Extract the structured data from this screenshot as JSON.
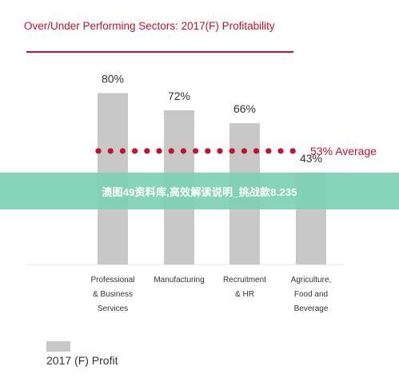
{
  "chart_data": {
    "type": "bar",
    "title": "Over/Under Performing Sectors: 2017(F) Profitability",
    "categories": [
      [
        "Professional",
        "& Business",
        "Services"
      ],
      [
        "Manufacturing"
      ],
      [
        "Recruitment",
        "& HR"
      ],
      [
        "Agriculture,",
        "Food and",
        "Beverage"
      ]
    ],
    "series": [
      {
        "name": "2017 (F) Profit",
        "values": [
          80,
          72,
          66,
          43
        ],
        "labels": [
          "80%",
          "72%",
          "66%",
          "43%"
        ]
      }
    ],
    "average": {
      "value": 53,
      "label": "53% Average"
    },
    "ylim": [
      0,
      100
    ],
    "grid": false,
    "legend_position": "bottom-left",
    "colors": {
      "bar": "#c8c8c8",
      "accent": "#c8102e",
      "text": "#333333",
      "title": "#c8102e"
    }
  },
  "banner": {
    "text": "澳图49资料库,高效解读说明_挑战款8.235"
  }
}
